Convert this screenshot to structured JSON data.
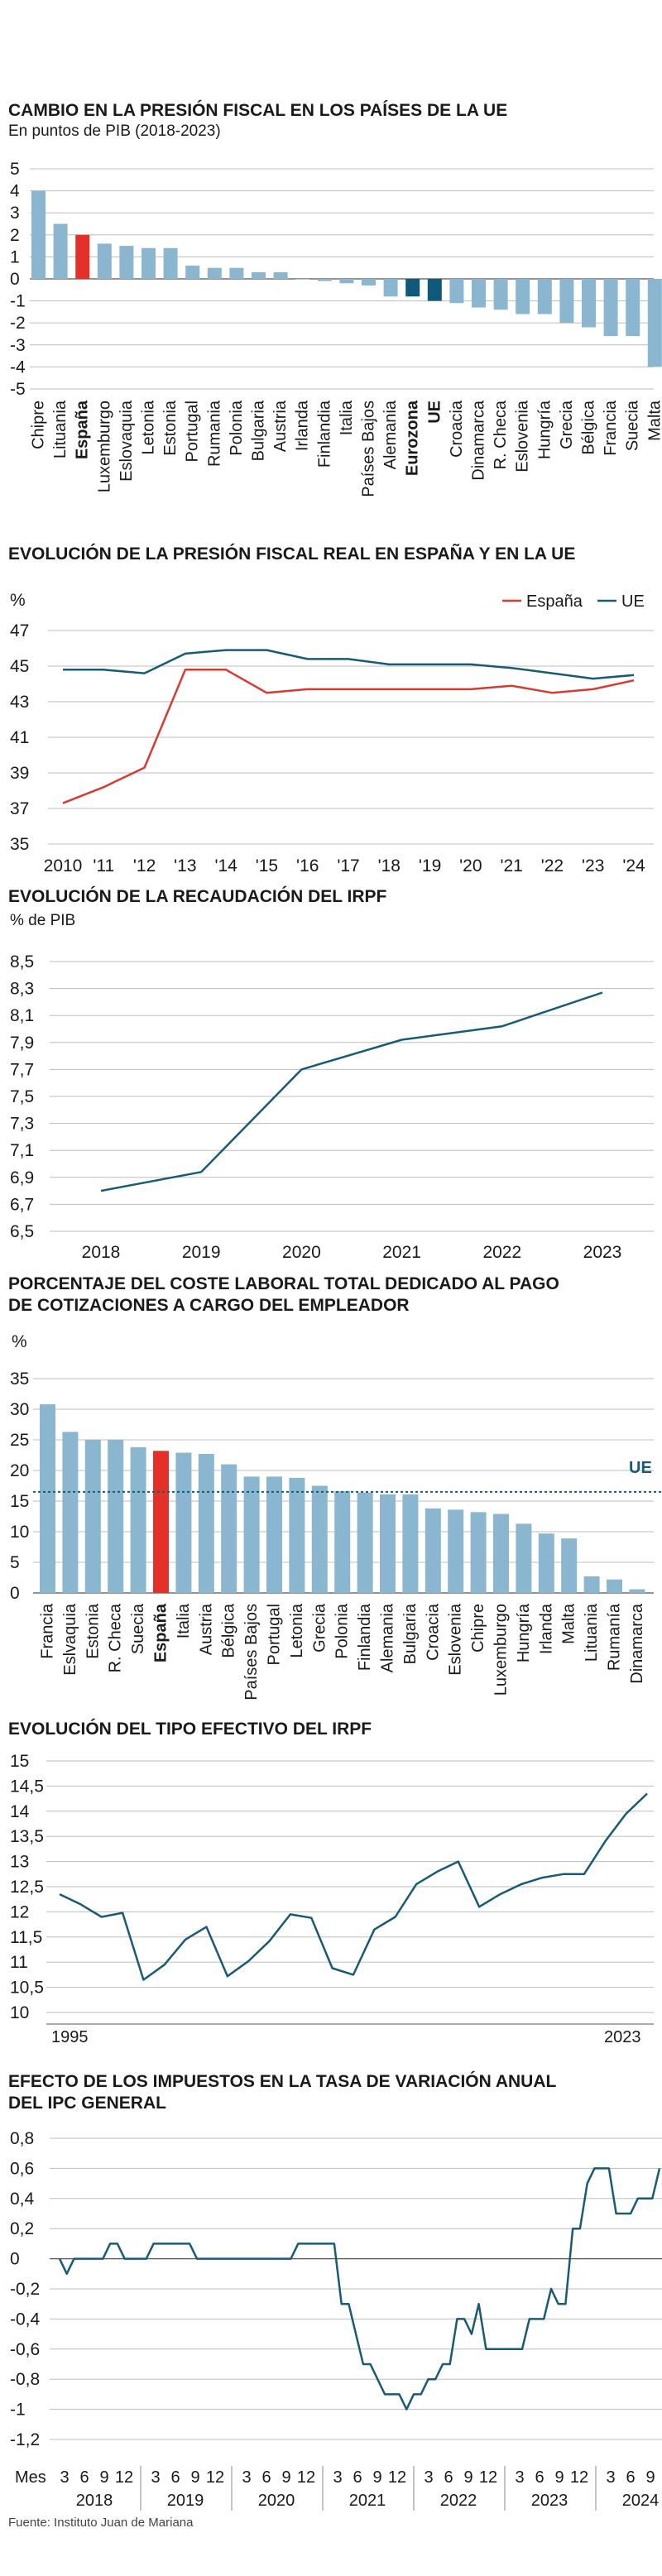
{
  "colors": {
    "bar": "#8ab6cf",
    "highlight_red": "#e3312a",
    "highlight_dark": "#0e5a78",
    "line_dark": "#195a74",
    "line_red": "#d63a33",
    "grid": "#bdbdbd"
  },
  "source": "Fuente: Instituto Juan de Mariana",
  "chart_data": [
    {
      "id": "c1",
      "type": "bar",
      "title": "CAMBIO EN LA PRESIÓN FISCAL EN LOS PAÍSES DE LA UE",
      "subtitle": "En puntos de PIB (2018-2023)",
      "ylim": [
        -5,
        5
      ],
      "yticks": [
        "5",
        "4",
        "3",
        "2",
        "1",
        "0",
        "-1",
        "-2",
        "-3",
        "-4",
        "-5"
      ],
      "categories": [
        "Chipre",
        "Lituania",
        "España",
        "Luxemburgo",
        "Eslovaquia",
        "Letonia",
        "Estonia",
        "Portugal",
        "Rumania",
        "Polonia",
        "Bulgaria",
        "Austria",
        "Irlanda",
        "Finlandia",
        "Italia",
        "Países Bajos",
        "Alemania",
        "Eurozona",
        "UE",
        "Croacia",
        "Dinamarca",
        "R. Checa",
        "Eslovenia",
        "Hungría",
        "Grecia",
        "Bélgica",
        "Francia",
        "Suecia",
        "Malta"
      ],
      "values": [
        4.0,
        2.5,
        2.0,
        1.6,
        1.5,
        1.4,
        1.4,
        0.6,
        0.5,
        0.5,
        0.3,
        0.3,
        0.0,
        -0.1,
        -0.2,
        -0.3,
        -0.8,
        -0.8,
        -1.0,
        -1.1,
        -1.3,
        -1.4,
        -1.6,
        -1.6,
        -2.0,
        -2.2,
        -2.6,
        -2.6,
        -4.0
      ],
      "highlight_red": [
        "España"
      ],
      "highlight_dark": [
        "Eurozona",
        "UE"
      ],
      "bold": [
        "España",
        "Eurozona",
        "UE"
      ]
    },
    {
      "id": "c2",
      "type": "line",
      "title": "EVOLUCIÓN DE LA PRESIÓN FISCAL REAL EN ESPAÑA Y EN LA UE",
      "ylabel": "%",
      "ylim": [
        35,
        47
      ],
      "yticks": [
        "47",
        "45",
        "43",
        "41",
        "39",
        "37",
        "35"
      ],
      "x_labels": [
        "2010",
        "'11",
        "'12",
        "'13",
        "'14",
        "'15",
        "'16",
        "'17",
        "'18",
        "'19",
        "'20",
        "'21",
        "'22",
        "'23",
        "'24"
      ],
      "series": [
        {
          "name": "España",
          "values": [
            37.3,
            38.2,
            39.3,
            44.8,
            44.8,
            43.5,
            43.7,
            43.7,
            43.7,
            43.7,
            43.7,
            43.9,
            43.5,
            43.7,
            44.2
          ]
        },
        {
          "name": "UE",
          "values": [
            44.8,
            44.8,
            44.6,
            45.7,
            45.9,
            45.9,
            45.4,
            45.4,
            45.1,
            45.1,
            45.1,
            44.9,
            44.6,
            44.3,
            44.5
          ]
        }
      ]
    },
    {
      "id": "c3",
      "type": "line",
      "title": "EVOLUCIÓN DE LA RECAUDACIÓN DEL IRPF",
      "ylabel": "% de PIB",
      "ylim": [
        6.5,
        8.5
      ],
      "yticks": [
        "8,5",
        "8,3",
        "8,1",
        "7,9",
        "7,7",
        "7,5",
        "7,3",
        "7,1",
        "6,9",
        "6,7",
        "6,5"
      ],
      "x_labels": [
        "2018",
        "2019",
        "2020",
        "2021",
        "2022",
        "2023"
      ],
      "values": [
        6.8,
        6.94,
        7.7,
        7.92,
        8.02,
        8.27
      ]
    },
    {
      "id": "c4",
      "type": "bar",
      "title": "PORCENTAJE DEL COSTE LABORAL TOTAL DEDICADO AL PAGO",
      "title2": "DE COTIZACIONES A CARGO DEL EMPLEADOR",
      "ylabel": "%",
      "ylim": [
        0,
        35
      ],
      "yticks": [
        "35",
        "30",
        "25",
        "20",
        "15",
        "10",
        "5",
        "0"
      ],
      "reference_label": "UE",
      "reference_value": 16.5,
      "categories": [
        "Francia",
        "Eslvaquia",
        "Estonia",
        "R. Checa",
        "Suecia",
        "España",
        "Italia",
        "Austria",
        "Bélgica",
        "Países Bajos",
        "Portugal",
        "Letonia",
        "Grecia",
        "Polonia",
        "Finlandia",
        "Alemania",
        "Bulgaria",
        "Croacia",
        "Eslovenia",
        "Chipre",
        "Luxemburgo",
        "Hungría",
        "Irlanda",
        "Malta",
        "Lituania",
        "Rumanía",
        "Dinamarca"
      ],
      "values": [
        30.8,
        26.3,
        25.0,
        25.0,
        23.8,
        23.2,
        22.9,
        22.7,
        21.0,
        19.0,
        19.0,
        18.8,
        17.5,
        16.6,
        16.4,
        16.1,
        16.1,
        13.8,
        13.6,
        13.2,
        12.9,
        11.3,
        9.7,
        8.9,
        2.7,
        2.2,
        0.6
      ],
      "highlight_red": [
        "España"
      ],
      "bold": [
        "España"
      ]
    },
    {
      "id": "c5",
      "type": "line",
      "title": "EVOLUCIÓN DEL TIPO EFECTIVO DEL IRPF",
      "ylim": [
        10,
        15
      ],
      "yticks": [
        "15",
        "14,5",
        "14",
        "13,5",
        "13",
        "12,5",
        "12",
        "11,5",
        "11",
        "10,5",
        "10"
      ],
      "x_start": "1995",
      "x_end": "2023",
      "values": [
        12.35,
        12.15,
        11.9,
        11.98,
        10.65,
        10.95,
        11.45,
        11.7,
        10.72,
        11.02,
        11.42,
        11.95,
        11.88,
        10.88,
        10.75,
        11.65,
        11.9,
        12.55,
        12.8,
        13.0,
        12.1,
        12.35,
        12.55,
        12.68,
        12.75,
        12.75,
        13.4,
        13.95,
        14.35
      ]
    },
    {
      "id": "c6",
      "type": "line",
      "title": "EFECTO DE LOS IMPUESTOS EN LA TASA DE VARIACIÓN ANUAL",
      "title2": "DEL IPC GENERAL",
      "ylim": [
        -1.2,
        0.8
      ],
      "yticks": [
        "0,8",
        "0,6",
        "0,4",
        "0,2",
        "0",
        "-0,2",
        "-0,4",
        "-0,6",
        "-0,8",
        "-1",
        "-1,2"
      ],
      "x_prefix": "Mes",
      "month_ticks": [
        "3",
        "6",
        "9",
        "12"
      ],
      "years": [
        "2018",
        "2019",
        "2020",
        "2021",
        "2022",
        "2023",
        "2024"
      ],
      "start_month": "2018-03",
      "values": [
        0.0,
        -0.1,
        0.0,
        0.0,
        0.0,
        0.0,
        0.0,
        0.1,
        0.1,
        0.0,
        0.0,
        0.0,
        0.0,
        0.1,
        0.1,
        0.1,
        0.1,
        0.1,
        0.1,
        0.0,
        0.0,
        0.0,
        0.0,
        0.0,
        0.0,
        0.0,
        0.0,
        0.0,
        0.0,
        0.0,
        0.0,
        0.0,
        0.0,
        0.1,
        0.1,
        0.1,
        0.1,
        0.1,
        0.1,
        -0.3,
        -0.3,
        -0.5,
        -0.7,
        -0.7,
        -0.8,
        -0.9,
        -0.9,
        -0.9,
        -1.0,
        -0.9,
        -0.9,
        -0.8,
        -0.8,
        -0.7,
        -0.7,
        -0.4,
        -0.4,
        -0.5,
        -0.3,
        -0.6,
        -0.6,
        -0.6,
        -0.6,
        -0.6,
        -0.6,
        -0.4,
        -0.4,
        -0.4,
        -0.2,
        -0.3,
        -0.3,
        0.2,
        0.2,
        0.5,
        0.6,
        0.6,
        0.6,
        0.3,
        0.3,
        0.3,
        0.4,
        0.4,
        0.4,
        0.6
      ]
    }
  ]
}
